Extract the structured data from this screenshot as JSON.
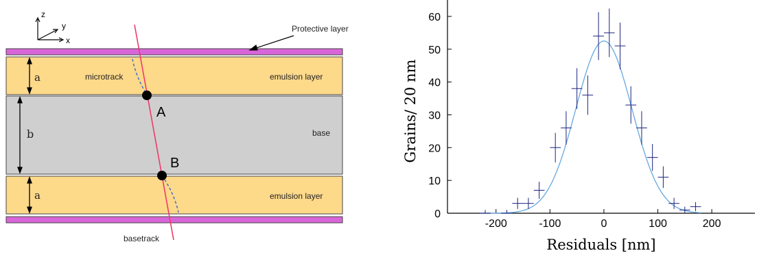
{
  "diagram": {
    "axes": {
      "z": "z",
      "y": "y",
      "x": "x"
    },
    "labels": {
      "protective_layer": "Protective layer",
      "microtrack": "microtrack",
      "emulsion_top": "emulsion layer",
      "emulsion_bottom": "emulsion layer",
      "base": "base",
      "basetrack": "basetrack",
      "point_a": "A",
      "point_b": "B",
      "dim_a_top": "a",
      "dim_b": "b",
      "dim_a_bottom": "a"
    },
    "colors": {
      "protective": "#d966d9",
      "emulsion": "#fdd98a",
      "base": "#cfcfcf",
      "track": "#ef3a6a",
      "microtrack": "#4a6fc7"
    }
  },
  "chart_data": {
    "type": "scatter",
    "xlabel": "Residuals [nm]",
    "ylabel": "Grains/ 20 nm",
    "xlim": [
      -290,
      280
    ],
    "ylim": [
      0,
      65
    ],
    "x_ticks": [
      -200,
      -100,
      0,
      100,
      200
    ],
    "y_ticks": [
      0,
      10,
      20,
      30,
      40,
      50,
      60
    ],
    "points": [
      {
        "x": -220,
        "y": 0,
        "yerr": 1
      },
      {
        "x": -180,
        "y": 0,
        "yerr": 1
      },
      {
        "x": -160,
        "y": 3,
        "yerr": 1.7
      },
      {
        "x": -140,
        "y": 3,
        "yerr": 1.7
      },
      {
        "x": -120,
        "y": 7,
        "yerr": 2.6
      },
      {
        "x": -90,
        "y": 20,
        "yerr": 4.5
      },
      {
        "x": -70,
        "y": 26,
        "yerr": 5.1
      },
      {
        "x": -50,
        "y": 38,
        "yerr": 6.2
      },
      {
        "x": -30,
        "y": 36,
        "yerr": 6
      },
      {
        "x": -10,
        "y": 54,
        "yerr": 7.3
      },
      {
        "x": 10,
        "y": 55,
        "yerr": 7.4
      },
      {
        "x": 30,
        "y": 51,
        "yerr": 7.1
      },
      {
        "x": 50,
        "y": 33,
        "yerr": 5.7
      },
      {
        "x": 70,
        "y": 26,
        "yerr": 5.1
      },
      {
        "x": 90,
        "y": 17,
        "yerr": 4.1
      },
      {
        "x": 110,
        "y": 11,
        "yerr": 3.3
      },
      {
        "x": 130,
        "y": 3,
        "yerr": 1.7
      },
      {
        "x": 150,
        "y": 1,
        "yerr": 1
      },
      {
        "x": 170,
        "y": 2,
        "yerr": 1.4
      }
    ],
    "fit": {
      "type": "gaussian",
      "amplitude": 52.5,
      "mean": 0,
      "sigma": 52
    },
    "colors": {
      "points": "#1a237e",
      "fit": "#64a8e0",
      "axis": "#000000"
    }
  }
}
